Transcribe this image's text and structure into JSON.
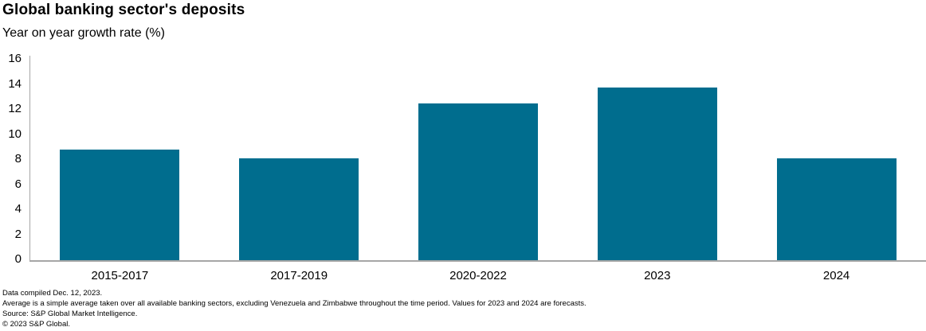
{
  "header": {
    "title": "Global banking sector's deposits",
    "subtitle": "Year on year growth rate (%)"
  },
  "chart_data": {
    "type": "bar",
    "title": "Global banking sector's deposits",
    "subtitle": "Year on year growth rate (%)",
    "categories": [
      "2015-2017",
      "2017-2019",
      "2020-2022",
      "2023",
      "2024"
    ],
    "values": [
      8.8,
      8.1,
      12.5,
      13.8,
      8.1
    ],
    "xlabel": "",
    "ylabel": "Year on year growth rate (%)",
    "ylim": [
      0,
      16
    ],
    "ytick_step": 2,
    "yticks": [
      0,
      2,
      4,
      6,
      8,
      10,
      12,
      14,
      16
    ],
    "grid": false,
    "legend": false,
    "bar_color": "#006d8e",
    "axis_color": "#a6a6a6",
    "text_color": "#000000"
  },
  "footnotes": [
    "Data compiled Dec. 12, 2023.",
    "Average is a simple average taken over all available banking sectors, excluding Venezuela and Zimbabwe throughout the time period. Values for 2023 and 2024 are forecasts.",
    "Source: S&P Global Market Intelligence.",
    "© 2023 S&P Global."
  ]
}
